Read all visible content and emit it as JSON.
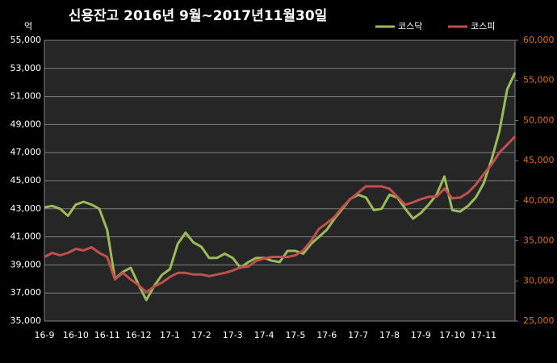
{
  "chart_data": {
    "type": "line",
    "title": "신용잔고  2016년 9월~2017년11월30일",
    "y_label": "억",
    "categories": [
      "16-9",
      null,
      null,
      null,
      "16-10",
      null,
      null,
      null,
      "16-11",
      null,
      null,
      null,
      "16-12",
      null,
      null,
      null,
      "17-1",
      null,
      null,
      null,
      "17-2",
      null,
      null,
      null,
      "17-3",
      null,
      null,
      null,
      "17-4",
      null,
      null,
      null,
      "17-5",
      null,
      null,
      null,
      "17-6",
      null,
      null,
      null,
      "17-7",
      null,
      null,
      null,
      "17-8",
      null,
      null,
      null,
      "17-9",
      null,
      null,
      null,
      "17-10",
      null,
      null,
      null,
      "17-11",
      null,
      null,
      null,
      null
    ],
    "series": [
      {
        "name": "코스닥",
        "color": "#9bbb59",
        "values": [
          43100,
          43200,
          43000,
          42500,
          43300,
          43500,
          43300,
          43000,
          41500,
          38000,
          38500,
          38800,
          37600,
          36500,
          37500,
          38300,
          38700,
          40500,
          41300,
          40600,
          40300,
          39500,
          39500,
          39800,
          39500,
          38800,
          39200,
          39500,
          39500,
          39300,
          39200,
          40000,
          40000,
          39800,
          40500,
          41000,
          41500,
          42300,
          43000,
          43700,
          44000,
          43800,
          42900,
          43000,
          44000,
          43800,
          43000,
          42300,
          42700,
          43300,
          44000,
          45300,
          42900,
          42800,
          43200,
          43800,
          44800,
          46500,
          48500,
          51500,
          52700
        ]
      },
      {
        "name": "코스피",
        "color": "#c0504d",
        "axis": "y2",
        "values": [
          33000,
          33500,
          33200,
          33500,
          34000,
          33800,
          34200,
          33500,
          33000,
          30200,
          31000,
          30200,
          29500,
          28600,
          29300,
          29800,
          30500,
          31000,
          31000,
          30800,
          30800,
          30600,
          30800,
          31000,
          31300,
          31700,
          31800,
          32500,
          32800,
          33000,
          33000,
          33000,
          33200,
          33800,
          35000,
          36500,
          37200,
          38000,
          39200,
          40200,
          41000,
          41800,
          41800,
          41800,
          41500,
          40500,
          39500,
          39800,
          40200,
          40500,
          40500,
          41500,
          40300,
          40400,
          41000,
          42000,
          43300,
          44500,
          46000,
          47000,
          48000
        ]
      }
    ],
    "ylim": [
      35000,
      55000
    ],
    "yticks": [
      {
        "value": 35000,
        "label": "35,000"
      },
      {
        "value": 37000,
        "label": "37,000"
      },
      {
        "value": 39000,
        "label": "39,000"
      },
      {
        "value": 41000,
        "label": "41,000"
      },
      {
        "value": 43000,
        "label": "43,000"
      },
      {
        "value": 45000,
        "label": "45,000"
      },
      {
        "value": 47000,
        "label": "47,000"
      },
      {
        "value": 49000,
        "label": "49,000"
      },
      {
        "value": 51000,
        "label": "51,000"
      },
      {
        "value": 53000,
        "label": "53,000"
      },
      {
        "value": 55000,
        "label": "55,000"
      }
    ],
    "y2lim": [
      25000,
      60000
    ],
    "y2ticks": [
      {
        "value": 25000,
        "label": "25,000"
      },
      {
        "value": 30000,
        "label": "30,000"
      },
      {
        "value": 35000,
        "label": "35,000"
      },
      {
        "value": 40000,
        "label": "40,000"
      },
      {
        "value": 45000,
        "label": "45,000"
      },
      {
        "value": 50000,
        "label": "50,000"
      },
      {
        "value": 55000,
        "label": "55,000"
      },
      {
        "value": 60000,
        "label": "60,000"
      }
    ],
    "grid": true,
    "legend": "top-right"
  }
}
